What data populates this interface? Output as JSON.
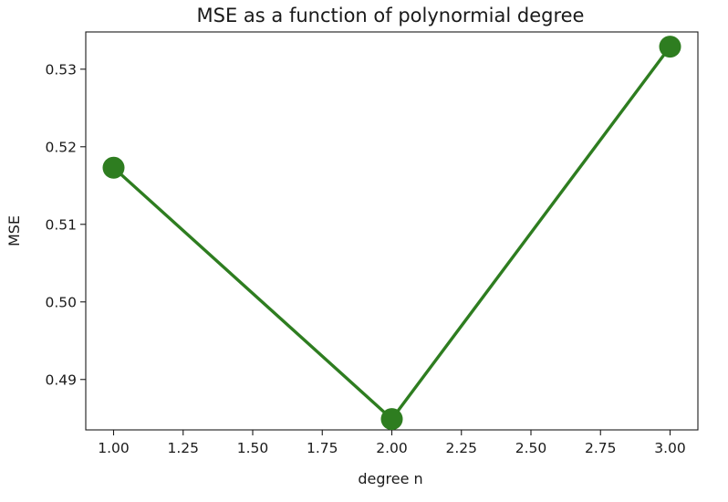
{
  "chart_data": {
    "type": "line",
    "title": "MSE as a function of polynormial degree",
    "xlabel": "degree n",
    "ylabel": "MSE",
    "xlim": [
      0.9,
      3.1
    ],
    "ylim": [
      0.4835,
      0.5348
    ],
    "grid": false,
    "legend": "none",
    "x_ticks": [
      1.0,
      1.25,
      1.5,
      1.75,
      2.0,
      2.25,
      2.5,
      2.75,
      3.0
    ],
    "x_tick_labels": [
      "1.00",
      "1.25",
      "1.50",
      "1.75",
      "2.00",
      "2.25",
      "2.50",
      "2.75",
      "3.00"
    ],
    "y_ticks": [
      0.49,
      0.5,
      0.51,
      0.52,
      0.53
    ],
    "y_tick_labels": [
      "0.49",
      "0.50",
      "0.51",
      "0.52",
      "0.53"
    ],
    "series": [
      {
        "color": "#2e7d20",
        "marker": "circle",
        "x": [
          1.0,
          2.0,
          3.0
        ],
        "y": [
          0.5173,
          0.4849,
          0.5329
        ]
      }
    ]
  }
}
